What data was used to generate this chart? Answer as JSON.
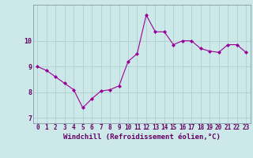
{
  "x": [
    0,
    1,
    2,
    3,
    4,
    5,
    6,
    7,
    8,
    9,
    10,
    11,
    12,
    13,
    14,
    15,
    16,
    17,
    18,
    19,
    20,
    21,
    22,
    23
  ],
  "y": [
    9.0,
    8.85,
    8.6,
    8.35,
    8.1,
    7.4,
    7.75,
    8.05,
    8.1,
    8.25,
    9.2,
    9.5,
    11.0,
    10.35,
    10.35,
    9.85,
    10.0,
    10.0,
    9.7,
    9.6,
    9.55,
    9.85,
    9.85,
    9.55
  ],
  "line_color": "#990099",
  "marker": "D",
  "marker_size": 2.0,
  "bg_color": "#cce8e8",
  "grid_color": "#aacccc",
  "xlabel": "Windchill (Refroidissement éolien,°C)",
  "xlim": [
    -0.5,
    23.5
  ],
  "ylim": [
    6.8,
    11.4
  ],
  "xticks": [
    0,
    1,
    2,
    3,
    4,
    5,
    6,
    7,
    8,
    9,
    10,
    11,
    12,
    13,
    14,
    15,
    16,
    17,
    18,
    19,
    20,
    21,
    22,
    23
  ],
  "yticks": [
    7,
    8,
    9,
    10
  ],
  "label_color": "#660066",
  "tick_fontsize": 5.5,
  "xlabel_fontsize": 6.5
}
